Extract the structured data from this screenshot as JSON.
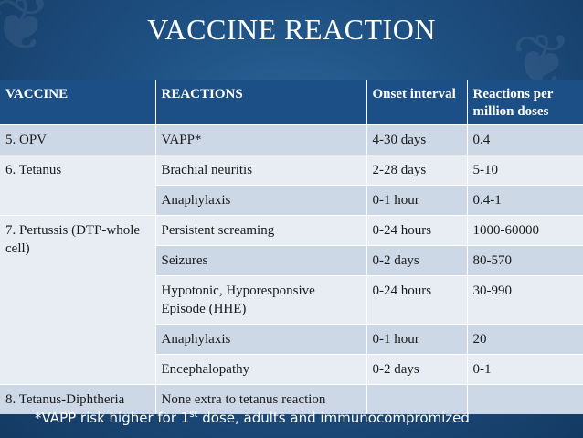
{
  "title": "VACCINE REACTION",
  "headers": [
    "VACCINE",
    "REACTIONS",
    "Onset interval",
    "Reactions per million doses"
  ],
  "rows": [
    {
      "vaccine": "5. OPV",
      "reaction": "VAPP*",
      "onset": "4-30 days",
      "rate": "0.4"
    },
    {
      "vaccine": "6. Tetanus",
      "reaction": "Brachial neuritis",
      "onset": "2-28 days",
      "rate": "5-10"
    },
    {
      "vaccine": "",
      "reaction": "Anaphylaxis",
      "onset": "0-1 hour",
      "rate": "0.4-1"
    },
    {
      "vaccine": "7. Pertussis  (DTP-whole cell)",
      "reaction": "Persistent screaming",
      "onset": "0-24 hours",
      "rate": "1000-60000"
    },
    {
      "vaccine": "",
      "reaction": "Seizures",
      "onset": "0-2 days",
      "rate": "80-570"
    },
    {
      "vaccine": "",
      "reaction": "Hypotonic, Hyporesponsive Episode (HHE)",
      "onset": "0-24 hours",
      "rate": "30-990"
    },
    {
      "vaccine": "",
      "reaction": "Anaphylaxis",
      "onset": "0-1 hour",
      "rate": "20"
    },
    {
      "vaccine": "",
      "reaction": "Encephalopathy",
      "onset": "0-2 days",
      "rate": "0-1"
    },
    {
      "vaccine": "8. Tetanus-Diphtheria",
      "reaction": "None extra to tetanus reaction",
      "onset": "",
      "rate": ""
    }
  ],
  "footnote": {
    "before": "*VAPP risk higher for 1",
    "sup": "st",
    "after": " dose, adults and immunocompromized"
  }
}
